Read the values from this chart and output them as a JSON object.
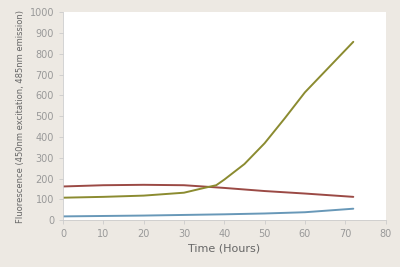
{
  "title": "",
  "xlabel": "Time (Hours)",
  "ylabel": "Fluorescence (450nm excitation, 485nm emission)",
  "xlim": [
    0,
    80
  ],
  "ylim": [
    0,
    1000
  ],
  "xticks": [
    0,
    10,
    20,
    30,
    40,
    50,
    60,
    70,
    80
  ],
  "yticks": [
    0,
    100,
    200,
    300,
    400,
    500,
    600,
    700,
    800,
    900,
    1000
  ],
  "fig_background": "#ede9e3",
  "axes_background": "#ffffff",
  "lines": [
    {
      "color": "#6898b8",
      "x": [
        0,
        10,
        20,
        30,
        40,
        50,
        60,
        72
      ],
      "y": [
        18,
        20,
        22,
        25,
        28,
        32,
        38,
        55
      ]
    },
    {
      "color": "#9b4a45",
      "x": [
        0,
        10,
        20,
        30,
        40,
        50,
        60,
        72
      ],
      "y": [
        162,
        168,
        170,
        168,
        155,
        140,
        128,
        112
      ]
    },
    {
      "color": "#8b8b30",
      "x": [
        0,
        10,
        20,
        30,
        35,
        38,
        40,
        45,
        50,
        55,
        60,
        72
      ],
      "y": [
        108,
        112,
        118,
        132,
        155,
        168,
        195,
        270,
        370,
        490,
        615,
        858
      ]
    }
  ],
  "tick_label_color": "#999999",
  "axis_label_color": "#666666",
  "spine_color": "#cccccc",
  "tick_label_fontsize": 7,
  "xlabel_fontsize": 8,
  "ylabel_fontsize": 6,
  "line_width": 1.4
}
